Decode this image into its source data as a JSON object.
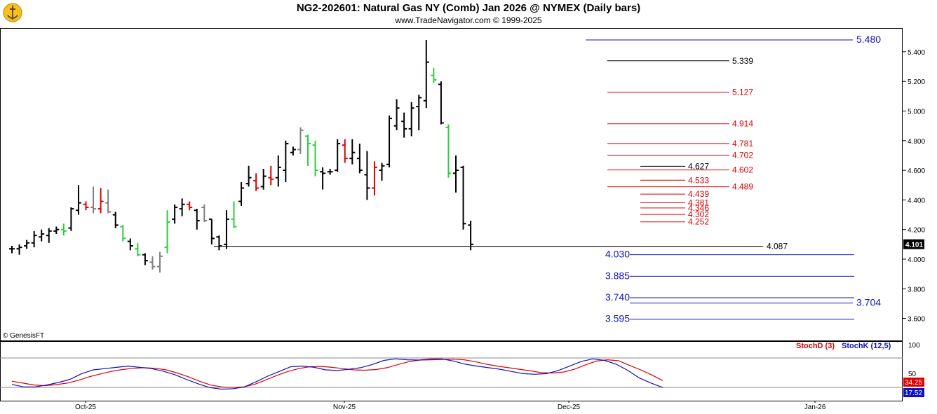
{
  "header": {
    "title": "NG2-202601:  Natural Gas NY (Comb) Jan 2026 @ NYMEX  (Daily bars)",
    "subtitle": "www.TradeNavigator.com © 1999-2025",
    "copyright": "© GenesisFT"
  },
  "colors": {
    "up": "#2ecc40",
    "down": "#e00000",
    "neutral": "#000000",
    "gray": "#808080",
    "blue_level": "#1010c0",
    "red_level": "#e00000",
    "black_level": "#000000"
  },
  "chart_data": [
    {
      "type": "ohlc",
      "title": "NG2-202601:  Natural Gas NY (Comb) Jan 2026 @ NYMEX  (Daily bars)",
      "ylim": [
        3.5,
        5.5
      ],
      "y_ticks": [
        "5.400",
        "5.200",
        "5.000",
        "4.800",
        "4.600",
        "4.400",
        "4.200",
        "4.000",
        "3.800",
        "3.600"
      ],
      "x_labels": [
        "Oct-25",
        "Nov-25",
        "Dec-25",
        "Jan-26"
      ],
      "last_price": "4.101",
      "bars": [
        {
          "h": 4.09,
          "l": 4.04,
          "o": 4.07,
          "c": 4.07,
          "col": "neutral"
        },
        {
          "h": 4.1,
          "l": 4.03,
          "o": 4.07,
          "c": 4.08,
          "col": "neutral"
        },
        {
          "h": 4.13,
          "l": 4.07,
          "o": 4.09,
          "c": 4.11,
          "col": "neutral"
        },
        {
          "h": 4.19,
          "l": 4.08,
          "o": 4.11,
          "c": 4.16,
          "col": "neutral"
        },
        {
          "h": 4.2,
          "l": 4.12,
          "o": 4.15,
          "c": 4.17,
          "col": "neutral"
        },
        {
          "h": 4.21,
          "l": 4.11,
          "o": 4.16,
          "c": 4.19,
          "col": "neutral"
        },
        {
          "h": 4.22,
          "l": 4.17,
          "o": 4.19,
          "c": 4.2,
          "col": "neutral"
        },
        {
          "h": 4.24,
          "l": 4.16,
          "o": 4.2,
          "c": 4.19,
          "col": "up"
        },
        {
          "h": 4.35,
          "l": 4.19,
          "o": 4.21,
          "c": 4.34,
          "col": "neutral"
        },
        {
          "h": 4.5,
          "l": 4.3,
          "o": 4.33,
          "c": 4.38,
          "col": "neutral"
        },
        {
          "h": 4.39,
          "l": 4.33,
          "o": 4.37,
          "c": 4.35,
          "col": "down"
        },
        {
          "h": 4.49,
          "l": 4.31,
          "o": 4.35,
          "c": 4.34,
          "col": "gray"
        },
        {
          "h": 4.48,
          "l": 4.31,
          "o": 4.34,
          "c": 4.39,
          "col": "down"
        },
        {
          "h": 4.47,
          "l": 4.31,
          "o": 4.38,
          "c": 4.32,
          "col": "gray"
        },
        {
          "h": 4.32,
          "l": 4.21,
          "o": 4.3,
          "c": 4.23,
          "col": "neutral"
        },
        {
          "h": 4.23,
          "l": 4.12,
          "o": 4.22,
          "c": 4.14,
          "col": "up"
        },
        {
          "h": 4.14,
          "l": 4.06,
          "o": 4.12,
          "c": 4.09,
          "col": "neutral"
        },
        {
          "h": 4.11,
          "l": 4.02,
          "o": 4.07,
          "c": 4.03,
          "col": "up"
        },
        {
          "h": 4.04,
          "l": 3.96,
          "o": 4.03,
          "c": 3.99,
          "col": "neutral"
        },
        {
          "h": 4.02,
          "l": 3.93,
          "o": 3.98,
          "c": 3.95,
          "col": "gray"
        },
        {
          "h": 4.05,
          "l": 3.91,
          "o": 3.95,
          "c": 4.02,
          "col": "gray"
        },
        {
          "h": 4.33,
          "l": 4.04,
          "o": 4.08,
          "c": 4.25,
          "col": "up"
        },
        {
          "h": 4.37,
          "l": 4.24,
          "o": 4.27,
          "c": 4.35,
          "col": "neutral"
        },
        {
          "h": 4.41,
          "l": 4.29,
          "o": 4.34,
          "c": 4.37,
          "col": "neutral"
        },
        {
          "h": 4.39,
          "l": 4.33,
          "o": 4.37,
          "c": 4.35,
          "col": "down"
        },
        {
          "h": 4.34,
          "l": 4.2,
          "o": 4.33,
          "c": 4.26,
          "col": "neutral"
        },
        {
          "h": 4.37,
          "l": 4.25,
          "o": 4.35,
          "c": 4.26,
          "col": "gray"
        },
        {
          "h": 4.27,
          "l": 4.1,
          "o": 4.27,
          "c": 4.14,
          "col": "neutral"
        },
        {
          "h": 4.16,
          "l": 4.06,
          "o": 4.15,
          "c": 4.09,
          "col": "neutral"
        },
        {
          "h": 4.33,
          "l": 4.07,
          "o": 4.1,
          "c": 4.27,
          "col": "neutral"
        },
        {
          "h": 4.39,
          "l": 4.21,
          "o": 4.27,
          "c": 4.22,
          "col": "up"
        },
        {
          "h": 4.52,
          "l": 4.36,
          "o": 4.39,
          "c": 4.48,
          "col": "neutral"
        },
        {
          "h": 4.63,
          "l": 4.49,
          "o": 4.51,
          "c": 4.55,
          "col": "neutral"
        },
        {
          "h": 4.58,
          "l": 4.46,
          "o": 4.53,
          "c": 4.48,
          "col": "down"
        },
        {
          "h": 4.61,
          "l": 4.47,
          "o": 4.49,
          "c": 4.56,
          "col": "neutral"
        },
        {
          "h": 4.63,
          "l": 4.5,
          "o": 4.55,
          "c": 4.54,
          "col": "down"
        },
        {
          "h": 4.7,
          "l": 4.49,
          "o": 4.55,
          "c": 4.62,
          "col": "neutral"
        },
        {
          "h": 4.8,
          "l": 4.52,
          "o": 4.6,
          "c": 4.78,
          "col": "neutral"
        },
        {
          "h": 4.76,
          "l": 4.7,
          "o": 4.72,
          "c": 4.74,
          "col": "neutral"
        },
        {
          "h": 4.89,
          "l": 4.71,
          "o": 4.74,
          "c": 4.87,
          "col": "gray"
        },
        {
          "h": 4.84,
          "l": 4.63,
          "o": 4.83,
          "c": 4.78,
          "col": "up"
        },
        {
          "h": 4.8,
          "l": 4.56,
          "o": 4.77,
          "c": 4.6,
          "col": "up"
        },
        {
          "h": 4.62,
          "l": 4.47,
          "o": 4.59,
          "c": 4.58,
          "col": "neutral"
        },
        {
          "h": 4.61,
          "l": 4.57,
          "o": 4.59,
          "c": 4.59,
          "col": "neutral"
        },
        {
          "h": 4.81,
          "l": 4.59,
          "o": 4.6,
          "c": 4.78,
          "col": "neutral"
        },
        {
          "h": 4.81,
          "l": 4.65,
          "o": 4.77,
          "c": 4.68,
          "col": "down"
        },
        {
          "h": 4.81,
          "l": 4.64,
          "o": 4.68,
          "c": 4.72,
          "col": "neutral"
        },
        {
          "h": 4.78,
          "l": 4.58,
          "o": 4.68,
          "c": 4.6,
          "col": "neutral"
        },
        {
          "h": 4.73,
          "l": 4.4,
          "o": 4.57,
          "c": 4.48,
          "col": "neutral"
        },
        {
          "h": 4.66,
          "l": 4.43,
          "o": 4.48,
          "c": 4.62,
          "col": "down"
        },
        {
          "h": 4.65,
          "l": 4.53,
          "o": 4.6,
          "c": 4.63,
          "col": "neutral"
        },
        {
          "h": 4.97,
          "l": 4.62,
          "o": 4.64,
          "c": 4.95,
          "col": "neutral"
        },
        {
          "h": 5.08,
          "l": 4.87,
          "o": 4.9,
          "c": 5.02,
          "col": "neutral"
        },
        {
          "h": 4.99,
          "l": 4.82,
          "o": 4.93,
          "c": 4.88,
          "col": "neutral"
        },
        {
          "h": 5.06,
          "l": 4.83,
          "o": 4.88,
          "c": 5.02,
          "col": "neutral"
        },
        {
          "h": 5.11,
          "l": 4.87,
          "o": 5.03,
          "c": 5.09,
          "col": "neutral"
        },
        {
          "h": 5.48,
          "l": 5.02,
          "o": 5.07,
          "c": 5.33,
          "col": "neutral"
        },
        {
          "h": 5.29,
          "l": 5.19,
          "o": 5.24,
          "c": 5.21,
          "col": "up"
        },
        {
          "h": 5.2,
          "l": 4.91,
          "o": 5.18,
          "c": 4.92,
          "col": "neutral"
        },
        {
          "h": 4.91,
          "l": 4.55,
          "o": 4.89,
          "c": 4.58,
          "col": "up"
        },
        {
          "h": 4.7,
          "l": 4.45,
          "o": 4.58,
          "c": 4.6,
          "col": "neutral"
        },
        {
          "h": 4.63,
          "l": 4.2,
          "o": 4.62,
          "c": 4.24,
          "col": "neutral"
        },
        {
          "h": 4.26,
          "l": 4.06,
          "o": 4.23,
          "c": 4.1,
          "col": "neutral"
        }
      ],
      "levels": [
        {
          "value": "5.480",
          "y": 5.48,
          "color": "blue_level",
          "side": "right-big"
        },
        {
          "value": "5.339",
          "y": 5.339,
          "color": "black_level",
          "side": "right"
        },
        {
          "value": "5.127",
          "y": 5.127,
          "color": "red_level",
          "side": "right"
        },
        {
          "value": "4.914",
          "y": 4.914,
          "color": "red_level",
          "side": "right"
        },
        {
          "value": "4.781",
          "y": 4.781,
          "color": "red_level",
          "side": "right"
        },
        {
          "value": "4.702",
          "y": 4.702,
          "color": "red_level",
          "side": "right"
        },
        {
          "value": "4.602",
          "y": 4.602,
          "color": "red_level",
          "side": "right"
        },
        {
          "value": "4.489",
          "y": 4.489,
          "color": "red_level",
          "side": "right"
        },
        {
          "value": "4.627",
          "y": 4.627,
          "color": "black_level",
          "side": "short"
        },
        {
          "value": "4.533",
          "y": 4.533,
          "color": "red_level",
          "side": "short"
        },
        {
          "value": "4.439",
          "y": 4.439,
          "color": "red_level",
          "side": "short"
        },
        {
          "value": "4.381",
          "y": 4.381,
          "color": "red_level",
          "side": "short"
        },
        {
          "value": "4.346",
          "y": 4.346,
          "color": "red_level",
          "side": "short"
        },
        {
          "value": "4.302",
          "y": 4.302,
          "color": "red_level",
          "side": "short"
        },
        {
          "value": "4.252",
          "y": 4.252,
          "color": "red_level",
          "side": "short"
        },
        {
          "value": "4.087",
          "y": 4.087,
          "color": "black_level",
          "side": "long"
        },
        {
          "value": "4.030",
          "y": 4.03,
          "color": "blue_level",
          "side": "left-big"
        },
        {
          "value": "3.885",
          "y": 3.885,
          "color": "blue_level",
          "side": "left-big"
        },
        {
          "value": "3.740",
          "y": 3.74,
          "color": "blue_level",
          "side": "left-big"
        },
        {
          "value": "3.704",
          "y": 3.704,
          "color": "blue_level",
          "side": "right-big"
        },
        {
          "value": "3.595",
          "y": 3.595,
          "color": "blue_level",
          "side": "left-big"
        }
      ]
    },
    {
      "type": "line",
      "series": [
        {
          "name": "StochD (3)",
          "color": "#e00000",
          "values": [
            24,
            18,
            12,
            10,
            13,
            18,
            27,
            38,
            47,
            55,
            61,
            65,
            67,
            65,
            60,
            50,
            38,
            24,
            12,
            6,
            4,
            6,
            14,
            28,
            42,
            55,
            64,
            70,
            71,
            68,
            64,
            60,
            59,
            61,
            67,
            77,
            86,
            91,
            92,
            93,
            94,
            92,
            86,
            78,
            72,
            67,
            62,
            57,
            51,
            50,
            53,
            62,
            76,
            88,
            92,
            89,
            74,
            60,
            44,
            26
          ]
        },
        {
          "name": "StochK (12,5)",
          "color": "#1010c0",
          "values": [
            14,
            6,
            6,
            12,
            20,
            30,
            48,
            60,
            64,
            68,
            72,
            68,
            64,
            56,
            45,
            30,
            16,
            4,
            -1,
            0,
            6,
            22,
            40,
            55,
            70,
            72,
            68,
            60,
            58,
            62,
            67,
            77,
            90,
            95,
            92,
            91,
            95,
            95,
            88,
            78,
            72,
            67,
            62,
            55,
            48,
            46,
            48,
            58,
            72,
            87,
            95,
            90,
            78,
            58,
            34,
            18,
            4
          ]
        }
      ],
      "y_ticks": [
        "100",
        "50"
      ],
      "last_k": "17.52",
      "last_d": "34.25"
    }
  ]
}
